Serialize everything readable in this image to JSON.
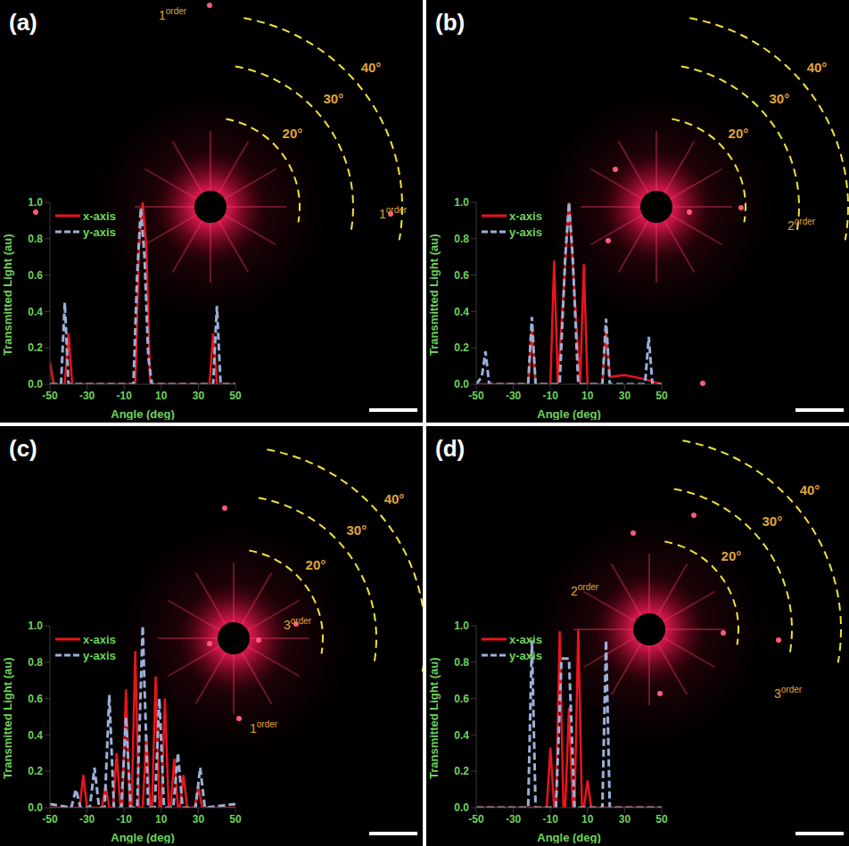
{
  "chart_data": [
    {
      "type": "line",
      "title": "(a)",
      "x_label": "Angle (deg)",
      "y_label": "Transmitted Light (au)",
      "xlim": [
        -50,
        50
      ],
      "xticks": [
        -50,
        -30,
        -10,
        10,
        30,
        50
      ],
      "ylim": [
        0,
        1
      ],
      "yticks": [
        {
          "value": 0,
          "label": "0.0"
        },
        0.2,
        0.4,
        0.6,
        0.8,
        {
          "value": 1,
          "label": "1.0"
        }
      ],
      "legend": "upper left",
      "angle_labels": [
        "20°",
        "30°",
        "40°"
      ],
      "annotations": [
        "1order",
        "1order"
      ],
      "series": [
        {
          "name": "x-axis",
          "color": "#e8141c",
          "line_style": "solid",
          "x": [
            -50,
            -48,
            -42,
            -40,
            -38,
            -4,
            -2,
            0,
            2,
            4,
            36,
            38,
            40,
            50
          ],
          "values": [
            0.12,
            0,
            0,
            0.28,
            0,
            0,
            0.75,
            1.0,
            0.75,
            0,
            0,
            0.28,
            0,
            0
          ]
        },
        {
          "name": "y-axis",
          "color": "#9bb0d8",
          "line_style": "dashed",
          "x": [
            -50,
            -44,
            -42,
            -40,
            -5,
            -3,
            -1,
            1,
            3,
            5,
            38,
            40,
            42,
            50
          ],
          "values": [
            0,
            0,
            0.45,
            0,
            0,
            0.6,
            0.97,
            0.7,
            0.15,
            0,
            0,
            0.43,
            0,
            0
          ]
        }
      ]
    },
    {
      "type": "line",
      "title": "(b)",
      "x_label": "Angle (deg)",
      "y_label": "Transmitted Light (au)",
      "xlim": [
        -50,
        50
      ],
      "xticks": [
        -50,
        -30,
        -10,
        10,
        30,
        50
      ],
      "ylim": [
        0,
        1
      ],
      "yticks": [
        {
          "value": 0,
          "label": "0.0"
        },
        0.2,
        0.4,
        0.6,
        0.8,
        {
          "value": 1,
          "label": "1.0"
        }
      ],
      "legend": "upper left",
      "angle_labels": [
        "20°",
        "30°",
        "40°"
      ],
      "annotations": [
        "2order"
      ],
      "series": [
        {
          "name": "x-axis",
          "color": "#e8141c",
          "line_style": "solid",
          "x": [
            -50,
            -22,
            -20,
            -18,
            -10,
            -8,
            -6,
            -3,
            0,
            3,
            6,
            8,
            10,
            18,
            20,
            22,
            30,
            40,
            50
          ],
          "values": [
            0,
            0,
            0.3,
            0,
            0,
            0.68,
            0,
            0.5,
            1.0,
            0.5,
            0,
            0.66,
            0,
            0,
            0.3,
            0.04,
            0.05,
            0.03,
            0
          ]
        },
        {
          "name": "y-axis",
          "color": "#9bb0d8",
          "line_style": "dashed",
          "x": [
            -50,
            -47,
            -45,
            -43,
            -22,
            -20,
            -18,
            -5,
            -2,
            0,
            2,
            5,
            18,
            20,
            22,
            41,
            43,
            45,
            50
          ],
          "values": [
            0,
            0.04,
            0.18,
            0,
            0,
            0.37,
            0,
            0,
            0.7,
            1.0,
            0.7,
            0,
            0,
            0.36,
            0,
            0,
            0.26,
            0,
            0
          ]
        }
      ]
    },
    {
      "type": "line",
      "title": "(c)",
      "x_label": "Angle (deg)",
      "y_label": "Transmitted Light (au)",
      "xlim": [
        -50,
        50
      ],
      "xticks": [
        -50,
        -30,
        -10,
        10,
        30,
        50
      ],
      "ylim": [
        0,
        1
      ],
      "yticks": [
        {
          "value": 0,
          "label": "0.0"
        },
        0.2,
        0.4,
        0.6,
        0.8,
        {
          "value": 1,
          "label": "1.0"
        }
      ],
      "legend": "upper left",
      "angle_labels": [
        "20°",
        "30°",
        "40°"
      ],
      "annotations": [
        "3order",
        "1order"
      ],
      "series": [
        {
          "name": "x-axis",
          "color": "#e8141c",
          "line_style": "solid",
          "x": [
            -50,
            -34,
            -32,
            -30,
            -22,
            -20,
            -18,
            -16,
            -14,
            -12,
            -11,
            -9,
            -7,
            -6,
            -4,
            -2,
            0,
            2,
            4,
            5,
            7,
            9,
            10,
            12,
            14,
            15,
            17,
            19,
            20,
            22,
            24,
            28,
            30,
            32,
            50
          ],
          "values": [
            0,
            0,
            0.18,
            0,
            0,
            0.12,
            0,
            0,
            0.3,
            0,
            0,
            0.65,
            0,
            0,
            0.86,
            0,
            0,
            0.4,
            0,
            0,
            0.72,
            0,
            0,
            0.6,
            0,
            0,
            0.27,
            0,
            0,
            0.18,
            0,
            0,
            0.12,
            0,
            0
          ]
        },
        {
          "name": "y-axis",
          "color": "#9bb0d8",
          "line_style": "dashed",
          "x": [
            -50,
            -38.5,
            -36,
            -33.5,
            -28.5,
            -26,
            -23.5,
            -20.5,
            -18,
            -15.5,
            -11.5,
            -9,
            -6.5,
            -3,
            0,
            3,
            6.5,
            9,
            11.5,
            16.5,
            19,
            21.5,
            28.5,
            31,
            33.5,
            50
          ],
          "values": [
            0.02,
            0,
            0.1,
            0,
            0,
            0.22,
            0,
            0,
            0.62,
            0,
            0,
            0.5,
            0,
            0,
            1.0,
            0,
            0,
            0.6,
            0,
            0,
            0.3,
            0,
            0,
            0.22,
            0,
            0.02
          ]
        }
      ]
    },
    {
      "type": "line",
      "title": "(d)",
      "x_label": "Angle (deg)",
      "y_label": "Transmitted Light (au)",
      "xlim": [
        -50,
        50
      ],
      "xticks": [
        -50,
        -30,
        -10,
        10,
        30,
        50
      ],
      "ylim": [
        0,
        1
      ],
      "yticks": [
        {
          "value": 0,
          "label": "0.0"
        },
        0.2,
        0.4,
        0.6,
        0.8,
        {
          "value": 1,
          "label": "1.0"
        }
      ],
      "legend": "upper left",
      "angle_labels": [
        "20°",
        "30°",
        "40°"
      ],
      "annotations": [
        "2order",
        "3order"
      ],
      "series": [
        {
          "name": "x-axis",
          "color": "#e8141c",
          "line_style": "solid",
          "x": [
            -50,
            -12,
            -10,
            -8,
            -7,
            -5,
            -3,
            -2,
            0,
            2,
            3,
            5,
            7,
            8,
            10,
            12,
            50
          ],
          "values": [
            0,
            0,
            0.33,
            0,
            0,
            0.97,
            0,
            0,
            0.55,
            0,
            0,
            0.98,
            0,
            0,
            0.15,
            0,
            0
          ]
        },
        {
          "name": "y-axis",
          "color": "#9bb0d8",
          "line_style": "dashed",
          "x": [
            -50,
            -22,
            -20,
            -18,
            -7,
            -4,
            0,
            3,
            18,
            20,
            22,
            50
          ],
          "values": [
            0,
            0,
            0.92,
            0,
            0,
            0.82,
            0.82,
            0,
            0,
            0.92,
            0,
            0
          ]
        }
      ]
    }
  ]
}
